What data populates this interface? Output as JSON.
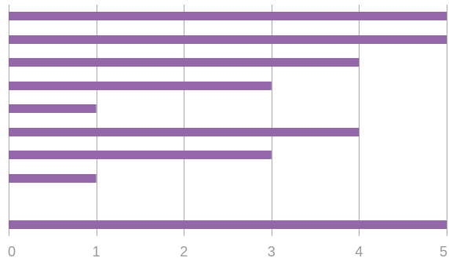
{
  "chart_data": {
    "type": "bar",
    "orientation": "horizontal",
    "title": "",
    "xlabel": "",
    "ylabel": "",
    "xlim": [
      0,
      5
    ],
    "grid": true,
    "legend": "none",
    "x_ticks": [
      "0",
      "1",
      "2",
      "3",
      "4",
      "5"
    ],
    "values": [
      5,
      5,
      4,
      3,
      1,
      4,
      3,
      1,
      0,
      5
    ],
    "bar_color": "#9467aa",
    "grid_color": "#a7a7a7",
    "tick_color": "#9a9a9a"
  }
}
